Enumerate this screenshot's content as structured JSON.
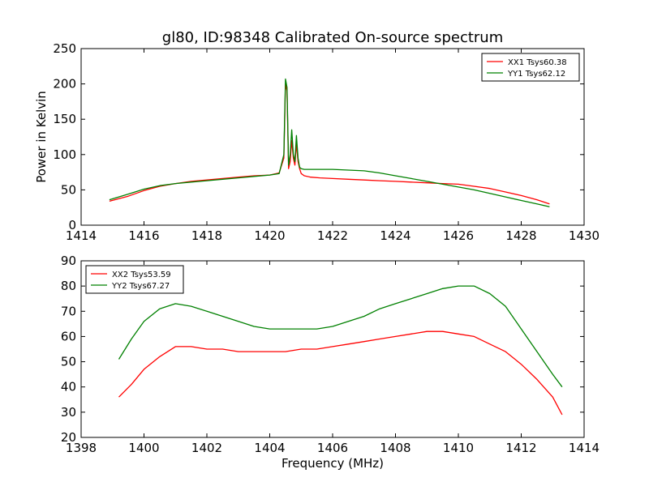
{
  "chart_data": [
    {
      "type": "line",
      "title": "gl80, ID:98348 Calibrated On-source spectrum",
      "xlabel": "",
      "ylabel": "Power in Kelvin",
      "xlim": [
        1414,
        1430
      ],
      "ylim": [
        0,
        250
      ],
      "xticks": [
        "1414",
        "1416",
        "1418",
        "1420",
        "1422",
        "1424",
        "1426",
        "1428",
        "1430"
      ],
      "yticks": [
        "0",
        "50",
        "100",
        "150",
        "200",
        "250"
      ],
      "grid": false,
      "legend_position": "top-right",
      "series": [
        {
          "name": "XX1 Tsys60.38",
          "color": "#ff0000",
          "x": [
            1414.9,
            1415.5,
            1416.0,
            1416.5,
            1417.0,
            1417.5,
            1418.0,
            1418.5,
            1419.0,
            1419.5,
            1420.0,
            1420.3,
            1420.45,
            1420.5,
            1420.55,
            1420.6,
            1420.65,
            1420.7,
            1420.75,
            1420.8,
            1420.85,
            1420.9,
            1420.95,
            1421.0,
            1421.1,
            1421.3,
            1421.6,
            1422.0,
            1422.5,
            1423.0,
            1423.5,
            1424.0,
            1424.5,
            1425.0,
            1425.5,
            1426.0,
            1426.5,
            1427.0,
            1427.5,
            1428.0,
            1428.5,
            1428.9
          ],
          "values": [
            34,
            41,
            49,
            55,
            59,
            62,
            64,
            66,
            68,
            70,
            71,
            74,
            95,
            200,
            190,
            80,
            90,
            120,
            95,
            85,
            115,
            90,
            80,
            73,
            70,
            68,
            67,
            66,
            65,
            64,
            63,
            62,
            61,
            60,
            59,
            58,
            55,
            52,
            47,
            42,
            36,
            30
          ]
        },
        {
          "name": "YY1 Tsys62.12",
          "color": "#008000",
          "x": [
            1414.9,
            1415.5,
            1416.0,
            1416.5,
            1417.0,
            1417.5,
            1418.0,
            1418.5,
            1419.0,
            1419.5,
            1420.0,
            1420.3,
            1420.45,
            1420.5,
            1420.55,
            1420.6,
            1420.65,
            1420.7,
            1420.75,
            1420.8,
            1420.85,
            1420.9,
            1420.95,
            1421.0,
            1421.1,
            1421.3,
            1421.6,
            1422.0,
            1422.5,
            1423.0,
            1423.5,
            1424.0,
            1424.5,
            1425.0,
            1425.5,
            1426.0,
            1426.5,
            1427.0,
            1427.5,
            1428.0,
            1428.5,
            1428.9
          ],
          "values": [
            36,
            44,
            51,
            56,
            59,
            61,
            63,
            65,
            67,
            69,
            71,
            73,
            100,
            207,
            195,
            85,
            100,
            135,
            100,
            90,
            127,
            95,
            82,
            80,
            79,
            79,
            79,
            79,
            78,
            77,
            74,
            70,
            66,
            62,
            58,
            54,
            50,
            45,
            40,
            35,
            30,
            26
          ]
        }
      ]
    },
    {
      "type": "line",
      "title": "",
      "xlabel": "Frequency (MHz)",
      "ylabel": "",
      "xlim": [
        1398,
        1414
      ],
      "ylim": [
        20,
        90
      ],
      "xticks": [
        "1398",
        "1400",
        "1402",
        "1404",
        "1406",
        "1408",
        "1410",
        "1412",
        "1414"
      ],
      "yticks": [
        "20",
        "30",
        "40",
        "50",
        "60",
        "70",
        "80",
        "90"
      ],
      "grid": false,
      "legend_position": "top-left",
      "series": [
        {
          "name": "XX2 Tsys53.59",
          "color": "#ff0000",
          "x": [
            1399.2,
            1399.6,
            1400.0,
            1400.5,
            1401.0,
            1401.5,
            1402.0,
            1402.5,
            1403.0,
            1403.5,
            1404.0,
            1404.5,
            1405.0,
            1405.5,
            1406.0,
            1406.5,
            1407.0,
            1407.5,
            1408.0,
            1408.5,
            1409.0,
            1409.5,
            1410.0,
            1410.5,
            1411.0,
            1411.5,
            1412.0,
            1412.5,
            1413.0,
            1413.3
          ],
          "values": [
            36,
            41,
            47,
            52,
            56,
            56,
            55,
            55,
            54,
            54,
            54,
            54,
            55,
            55,
            56,
            57,
            58,
            59,
            60,
            61,
            62,
            62,
            61,
            60,
            57,
            54,
            49,
            43,
            36,
            29
          ]
        },
        {
          "name": "YY2 Tsys67.27",
          "color": "#008000",
          "x": [
            1399.2,
            1399.6,
            1400.0,
            1400.5,
            1401.0,
            1401.5,
            1402.0,
            1402.5,
            1403.0,
            1403.5,
            1404.0,
            1404.5,
            1405.0,
            1405.5,
            1406.0,
            1406.5,
            1407.0,
            1407.5,
            1408.0,
            1408.5,
            1409.0,
            1409.5,
            1410.0,
            1410.5,
            1411.0,
            1411.5,
            1412.0,
            1412.5,
            1413.0,
            1413.3
          ],
          "values": [
            51,
            59,
            66,
            71,
            73,
            72,
            70,
            68,
            66,
            64,
            63,
            63,
            63,
            63,
            64,
            66,
            68,
            71,
            73,
            75,
            77,
            79,
            80,
            80,
            77,
            72,
            63,
            54,
            45,
            40
          ]
        }
      ]
    }
  ]
}
